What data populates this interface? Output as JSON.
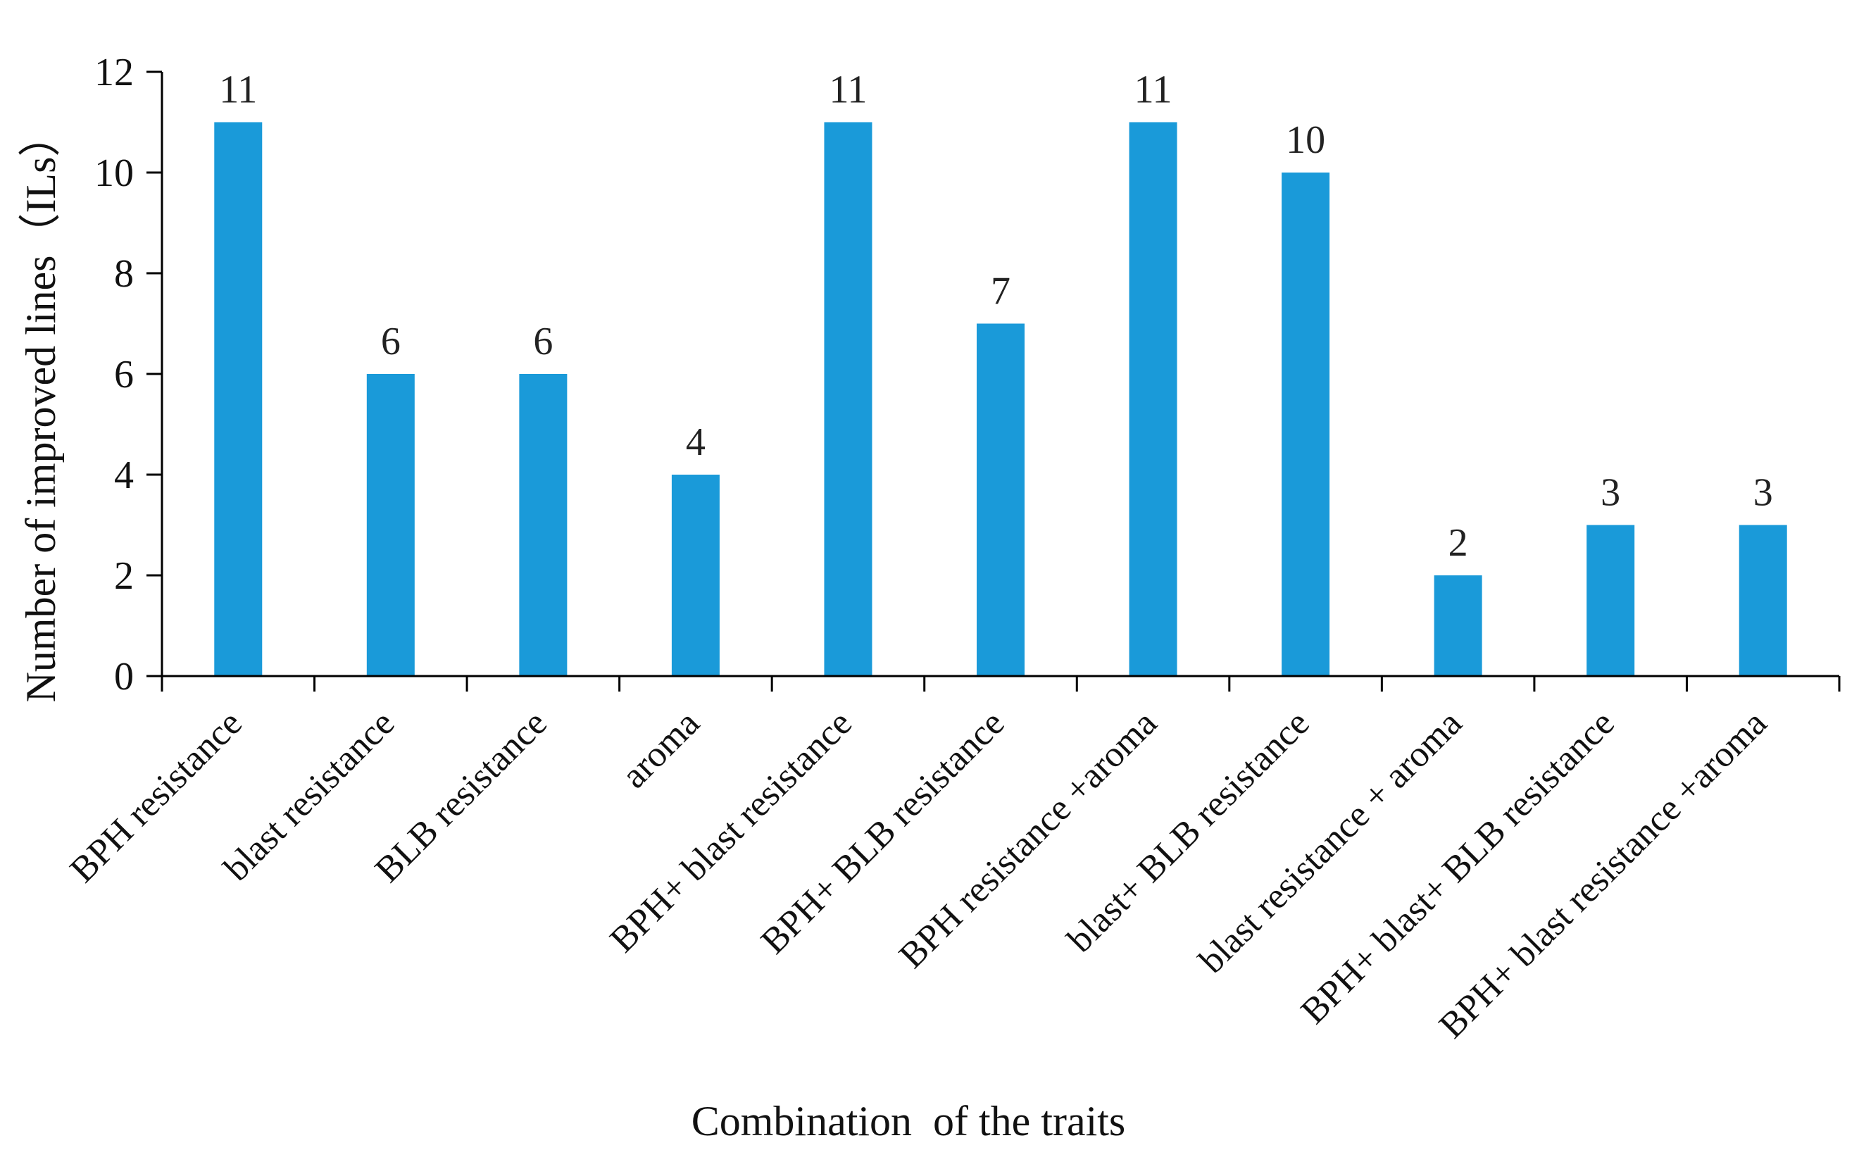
{
  "chart_data": {
    "type": "bar",
    "title": "",
    "xlabel": "Combination  of the traits",
    "ylabel": "Number of improved lines（ILs）",
    "ylim": [
      0,
      12
    ],
    "yticks": [
      0,
      2,
      4,
      6,
      8,
      10,
      12
    ],
    "grid": false,
    "legend": "none",
    "bar_color": "#1a9ad9",
    "categories": [
      "BPH resistance",
      "blast resistance",
      "BLB resistance",
      "aroma",
      "BPH+ blast resistance",
      "BPH+ BLB resistance",
      "BPH resistance +aroma",
      "blast+ BLB resistance",
      "blast  resistance + aroma",
      "BPH+ blast+ BLB resistance",
      "BPH+ blast resistance +aroma"
    ],
    "values": [
      11,
      6,
      6,
      4,
      11,
      7,
      11,
      10,
      2,
      3,
      3
    ],
    "data_labels": [
      "11",
      "6",
      "6",
      "4",
      "11",
      "7",
      "11",
      "10",
      "2",
      "3",
      "3"
    ]
  }
}
